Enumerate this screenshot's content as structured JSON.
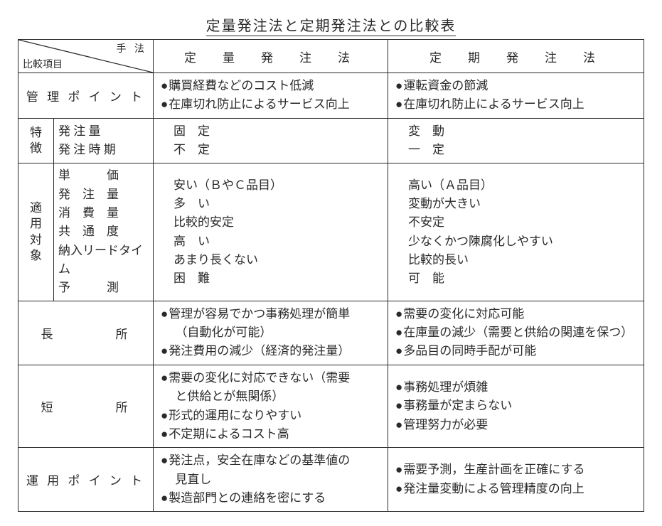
{
  "title": "定量発注法と定期発注法との比較表",
  "header": {
    "corner_top": "手 法",
    "corner_bottom": "比較項目",
    "col_a": "定　量　発　注　法",
    "col_b": "定　期　発　注　法"
  },
  "rows": {
    "mgmt": {
      "label": "管 理 ポ イ ン ト",
      "a": [
        "購買経費などのコスト低減",
        "在庫切れ防止によるサービス向上"
      ],
      "b": [
        "運転資金の節減",
        "在庫切れ防止によるサービス向上"
      ]
    },
    "feature": {
      "group": "特徴",
      "sub1": {
        "label": "発 注 量",
        "a": "固　定",
        "b": "変　動"
      },
      "sub2": {
        "label": "発 注 時 期",
        "a": "不　定",
        "b": "一　定"
      }
    },
    "target": {
      "group": "適用対象",
      "labels": [
        "単　　　価",
        "発　注　量",
        "消　費　量",
        "共　通　度",
        "納入リードタイム",
        "予　　　測"
      ],
      "a": [
        "安い（ＢやＣ品目）",
        "多　い",
        "比較的安定",
        "高　い",
        "あまり長くない",
        "困　難"
      ],
      "b": [
        "高い（Ａ品目）",
        "変動が大きい",
        "不安定",
        "少なくかつ陳腐化しやすい",
        "比較的長い",
        "可　能"
      ]
    },
    "pros": {
      "label": "長　　　　所",
      "a": [
        "管理が容易でかつ事務処理が簡単",
        "（自動化が可能）",
        "発注費用の減少（経済的発注量）"
      ],
      "a_indent": [
        false,
        true,
        false
      ],
      "b": [
        "需要の変化に対応可能",
        "在庫量の減少（需要と供給の関連を保つ）",
        "多品目の同時手配が可能"
      ]
    },
    "cons": {
      "label": "短　　　　所",
      "a": [
        "需要の変化に対応できない（需要",
        "と供給とが無関係）",
        "形式的運用になりやすい",
        "不定期によるコスト高"
      ],
      "a_indent": [
        false,
        true,
        false,
        false
      ],
      "b": [
        "事務処理が煩雑",
        "事務量が定まらない",
        "管理努力が必要"
      ]
    },
    "ops": {
      "label": "運 用 ポ イ ン ト",
      "a": [
        "発注点，安全在庫などの基準値の",
        "見直し",
        "製造部門との連絡を密にする"
      ],
      "a_indent": [
        false,
        true,
        false
      ],
      "b": [
        "需要予測，生産計画を正確にする",
        "発注量変動による管理精度の向上"
      ]
    }
  }
}
